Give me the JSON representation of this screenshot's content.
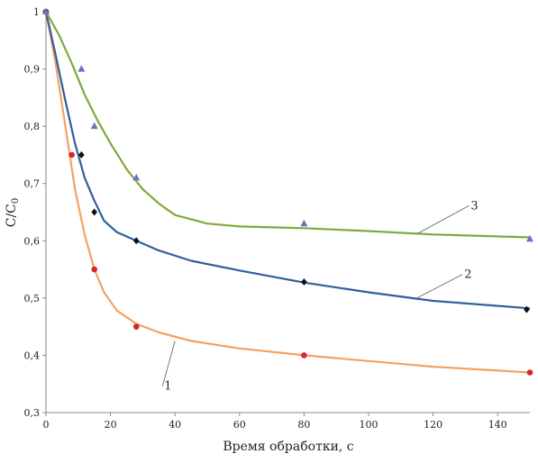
{
  "chart_data": {
    "type": "scatter",
    "title": "",
    "xlabel": "Время обработки, с",
    "ylabel_main": "C",
    "ylabel_sub": "0",
    "xlim": [
      0,
      150
    ],
    "ylim": [
      0.3,
      1.0
    ],
    "xticks": [
      0,
      20,
      40,
      60,
      80,
      100,
      120,
      140
    ],
    "xtick_labels": [
      "0",
      "20",
      "40",
      "60",
      "80",
      "100",
      "120",
      "140"
    ],
    "yticks": [
      0.3,
      0.4,
      0.5,
      0.6,
      0.7,
      0.8,
      0.9,
      1.0
    ],
    "ytick_labels": [
      "0,3",
      "0,4",
      "0,5",
      "0,6",
      "0,7",
      "0,8",
      "0,9",
      "1"
    ],
    "grid": false,
    "legend": "none",
    "series": [
      {
        "label": "1",
        "marker": "circle",
        "marker_color": "#d62728",
        "line_color": "#f4a261",
        "points": [
          [
            0,
            1.0
          ],
          [
            8,
            0.75
          ],
          [
            15,
            0.55
          ],
          [
            28,
            0.45
          ],
          [
            80,
            0.4
          ],
          [
            150,
            0.37
          ]
        ],
        "curve": [
          [
            0,
            1.0
          ],
          [
            3,
            0.91
          ],
          [
            6,
            0.8
          ],
          [
            9,
            0.69
          ],
          [
            12,
            0.61
          ],
          [
            15,
            0.55
          ],
          [
            18,
            0.51
          ],
          [
            22,
            0.478
          ],
          [
            28,
            0.455
          ],
          [
            35,
            0.44
          ],
          [
            45,
            0.425
          ],
          [
            60,
            0.412
          ],
          [
            80,
            0.4
          ],
          [
            100,
            0.39
          ],
          [
            120,
            0.38
          ],
          [
            150,
            0.37
          ]
        ],
        "label_anchor": [
          40,
          0.425
        ],
        "label_text_pos": [
          35,
          0.34
        ]
      },
      {
        "label": "2",
        "marker": "diamond",
        "marker_color": "#111111",
        "line_color": "#2f5f9e",
        "points": [
          [
            0,
            1.0
          ],
          [
            11,
            0.75
          ],
          [
            15,
            0.65
          ],
          [
            28,
            0.6
          ],
          [
            80,
            0.528
          ],
          [
            149,
            0.48
          ]
        ],
        "curve": [
          [
            0,
            1.0
          ],
          [
            3,
            0.925
          ],
          [
            6,
            0.845
          ],
          [
            9,
            0.77
          ],
          [
            12,
            0.71
          ],
          [
            15,
            0.67
          ],
          [
            18,
            0.635
          ],
          [
            22,
            0.615
          ],
          [
            28,
            0.6
          ],
          [
            35,
            0.583
          ],
          [
            45,
            0.565
          ],
          [
            60,
            0.548
          ],
          [
            80,
            0.527
          ],
          [
            100,
            0.51
          ],
          [
            120,
            0.495
          ],
          [
            150,
            0.482
          ]
        ],
        "label_anchor": [
          115,
          0.5
        ],
        "label_text_pos": [
          128,
          0.535
        ]
      },
      {
        "label": "3",
        "marker": "triangle",
        "marker_color": "#6a73c6",
        "line_color": "#7faa3a",
        "points": [
          [
            0,
            1.0
          ],
          [
            11,
            0.9
          ],
          [
            15,
            0.8
          ],
          [
            28,
            0.71
          ],
          [
            80,
            0.63
          ],
          [
            150,
            0.603
          ]
        ],
        "curve": [
          [
            0,
            1.0
          ],
          [
            4,
            0.96
          ],
          [
            8,
            0.91
          ],
          [
            12,
            0.855
          ],
          [
            16,
            0.81
          ],
          [
            20,
            0.77
          ],
          [
            25,
            0.725
          ],
          [
            30,
            0.69
          ],
          [
            35,
            0.665
          ],
          [
            40,
            0.645
          ],
          [
            50,
            0.63
          ],
          [
            60,
            0.625
          ],
          [
            80,
            0.622
          ],
          [
            100,
            0.617
          ],
          [
            120,
            0.611
          ],
          [
            150,
            0.606
          ]
        ],
        "label_anchor": [
          115,
          0.612
        ],
        "label_text_pos": [
          130,
          0.655
        ]
      }
    ]
  }
}
